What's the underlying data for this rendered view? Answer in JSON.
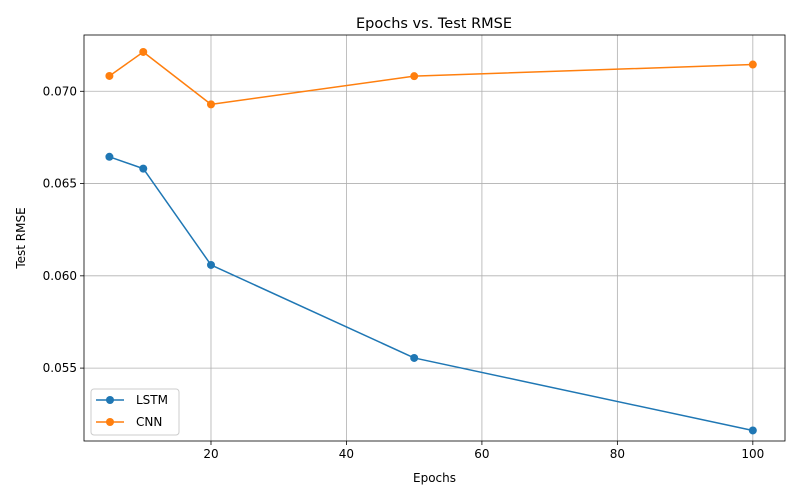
{
  "chart_data": {
    "type": "line",
    "title": "Epochs vs. Test RMSE",
    "xlabel": "Epochs",
    "ylabel": "Test RMSE",
    "x": [
      5,
      10,
      20,
      50,
      100
    ],
    "xlim": [
      1.25,
      104.75
    ],
    "ylim": [
      0.05105,
      0.07305
    ],
    "xticks": [
      20,
      40,
      60,
      80,
      100
    ],
    "xtick_labels": [
      "20",
      "40",
      "60",
      "80",
      "100"
    ],
    "yticks": [
      0.055,
      0.06,
      0.065,
      0.07
    ],
    "ytick_labels": [
      "0.055",
      "0.060",
      "0.065",
      "0.070"
    ],
    "grid": true,
    "legend_position": "lower-left",
    "series": [
      {
        "name": "LSTM",
        "color": "#1f77b4",
        "marker": "circle",
        "values": [
          0.06645,
          0.06581,
          0.06059,
          0.05555,
          0.05162
        ]
      },
      {
        "name": "CNN",
        "color": "#ff7f0e",
        "marker": "circle",
        "values": [
          0.07083,
          0.07213,
          0.06929,
          0.07082,
          0.07145
        ]
      }
    ]
  }
}
